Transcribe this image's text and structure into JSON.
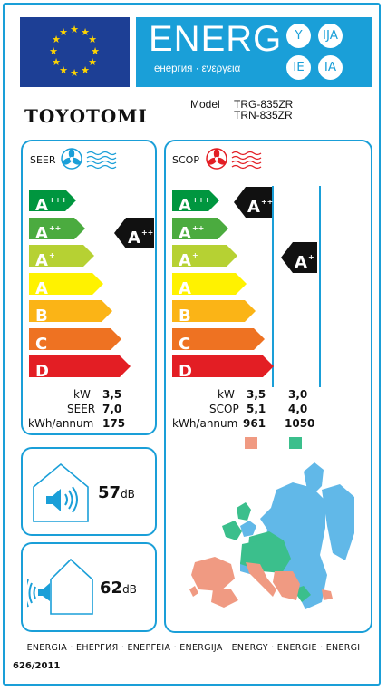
{
  "header": {
    "energy_word": "ENERG",
    "energy_subtitle": "енергия · ενεργεια",
    "lang_marks": [
      "Y",
      "IJA",
      "IE",
      "IA"
    ]
  },
  "brand": {
    "name": "TOYOTOMI"
  },
  "model": {
    "label": "Model",
    "lines": [
      "TRG-835ZR",
      "TRN-835ZR"
    ]
  },
  "cooling": {
    "title": "SEER",
    "scale": [
      {
        "letter": "A",
        "sup": "+++",
        "color": "#00963f"
      },
      {
        "letter": "A",
        "sup": "++",
        "color": "#4bab3f"
      },
      {
        "letter": "A",
        "sup": "+",
        "color": "#b6d133"
      },
      {
        "letter": "A",
        "sup": "",
        "color": "#fff200"
      },
      {
        "letter": "B",
        "sup": "",
        "color": "#fbb416"
      },
      {
        "letter": "C",
        "sup": "",
        "color": "#ee7222"
      },
      {
        "letter": "D",
        "sup": "",
        "color": "#e31e24"
      }
    ],
    "class_letter": "A",
    "class_sup": "++",
    "stats": [
      {
        "label": "kW",
        "value": "3,5"
      },
      {
        "label": "SEER",
        "value": "7,0"
      },
      {
        "label": "kWh/annum",
        "value": "175"
      }
    ]
  },
  "heating": {
    "title": "SCOP",
    "scale": [
      {
        "letter": "A",
        "sup": "+++",
        "color": "#00963f"
      },
      {
        "letter": "A",
        "sup": "++",
        "color": "#4bab3f"
      },
      {
        "letter": "A",
        "sup": "+",
        "color": "#b6d133"
      },
      {
        "letter": "A",
        "sup": "",
        "color": "#fff200"
      },
      {
        "letter": "B",
        "sup": "",
        "color": "#fbb416"
      },
      {
        "letter": "C",
        "sup": "",
        "color": "#ee7222"
      },
      {
        "letter": "D",
        "sup": "",
        "color": "#e31e24"
      }
    ],
    "class_warm_letter": "A",
    "class_warm_sup": "+++",
    "class_avg_letter": "A",
    "class_avg_sup": "+",
    "stats": [
      {
        "label": "kW",
        "v1": "3,5",
        "v2": "3,0"
      },
      {
        "label": "SCOP",
        "v1": "5,1",
        "v2": "4,0"
      },
      {
        "label": "kWh/annum",
        "v1": "961",
        "v2": "1050"
      }
    ],
    "zone_colors": {
      "warm": "#f09a82",
      "average": "#3bbf8c",
      "cold": "#61b8e8"
    }
  },
  "noise": {
    "indoor": {
      "value": "57",
      "unit": "dB"
    },
    "outdoor": {
      "value": "62",
      "unit": "dB"
    }
  },
  "footer": {
    "languages": "ENERGIA · ЕНЕРГИЯ · ΕΝΕΡΓΕΙΑ · ENERGIJA · ENERGY · ENERGIE · ENERGI",
    "regulation": "626/2011"
  },
  "colors": {
    "frame": "#1a9fd8",
    "eu_blue": "#1d3f95",
    "eu_star": "#ffd500",
    "indicator": "#111111"
  }
}
